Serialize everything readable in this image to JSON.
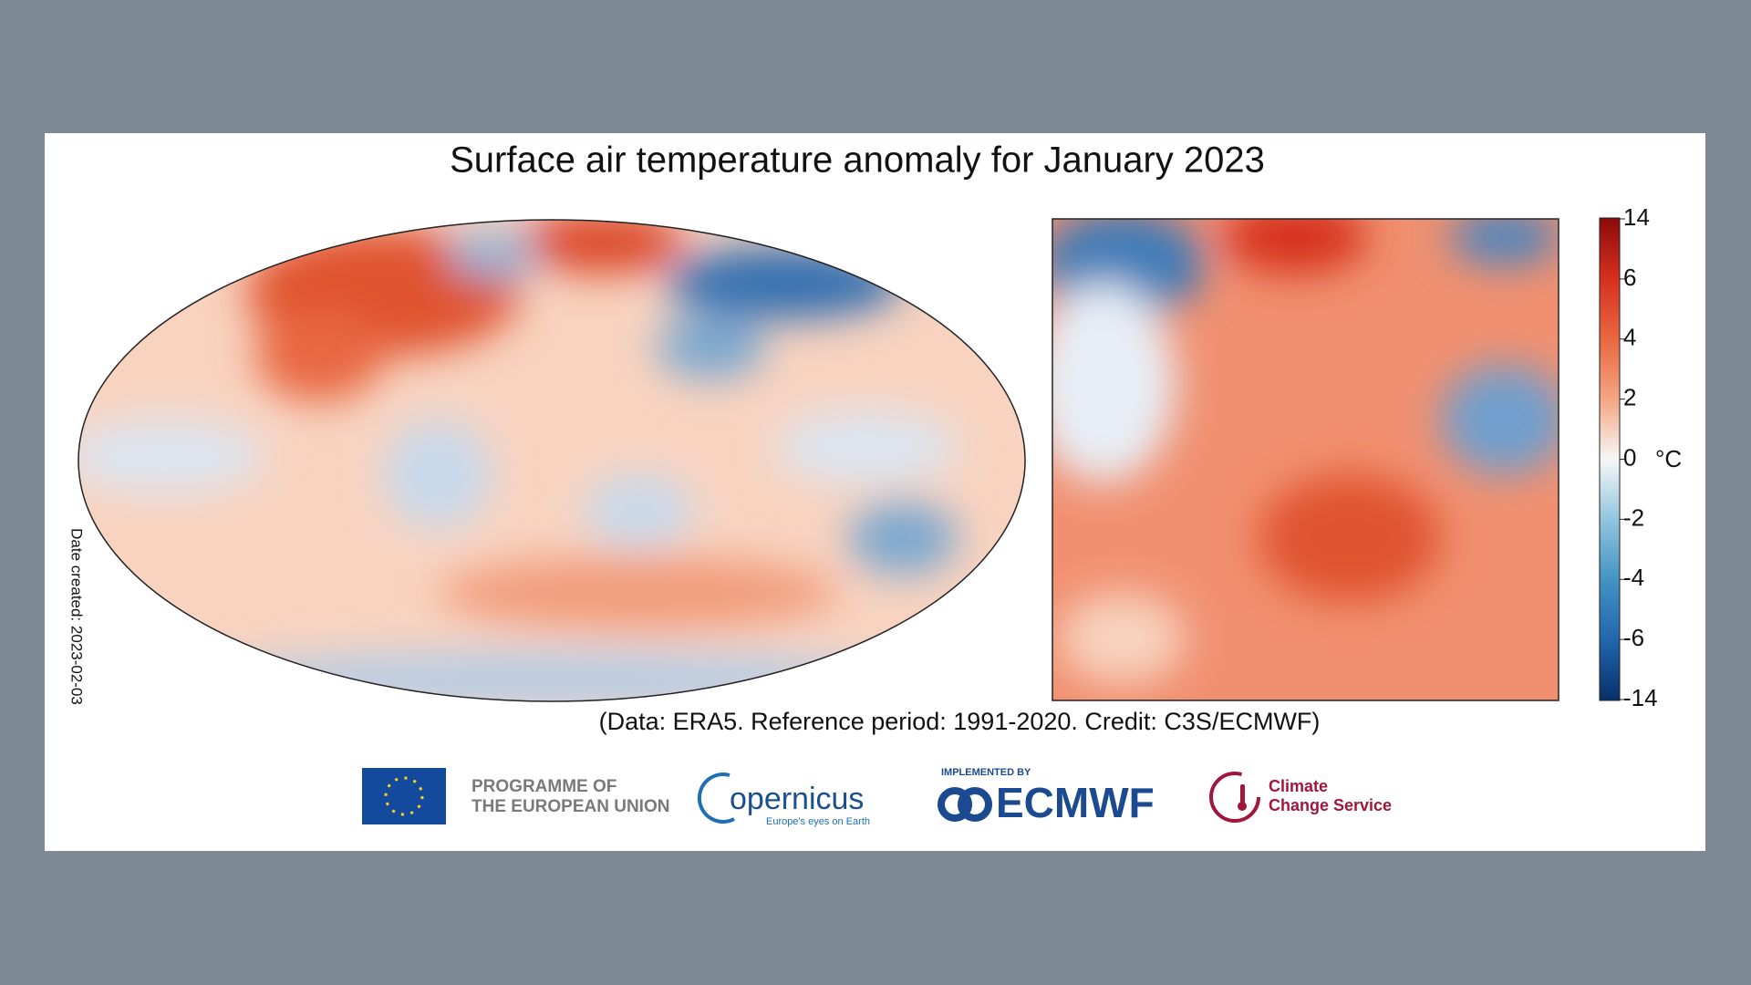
{
  "title": "Surface air temperature anomaly for January 2023",
  "credit": "(Data: ERA5.  Reference period: 1991-2020.  Credit: C3S/ECMWF)",
  "date_created": "Date created: 2023-02-03",
  "colorbar": {
    "unit": "°C",
    "ticks": [
      14,
      6,
      4,
      2,
      0,
      -2,
      -4,
      -6,
      -14
    ]
  },
  "logos": {
    "eu_line1": "PROGRAMME OF",
    "eu_line2": "THE EUROPEAN UNION",
    "copernicus": "opernicus",
    "copernicus_tagline": "Europe's eyes on Earth",
    "implemented_by": "IMPLEMENTED BY",
    "ecmwf": "ECMWF",
    "c3s_line1": "Climate",
    "c3s_line2": "Change Service"
  }
}
